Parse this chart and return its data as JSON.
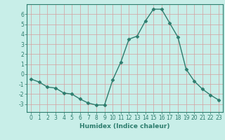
{
  "x": [
    0,
    1,
    2,
    3,
    4,
    5,
    6,
    7,
    8,
    9,
    10,
    11,
    12,
    13,
    14,
    15,
    16,
    17,
    18,
    19,
    20,
    21,
    22,
    23
  ],
  "y": [
    -0.5,
    -0.8,
    -1.3,
    -1.4,
    -1.9,
    -2.0,
    -2.5,
    -2.9,
    -3.1,
    -3.1,
    -0.6,
    1.2,
    3.5,
    3.8,
    5.3,
    6.5,
    6.5,
    5.1,
    3.7,
    0.5,
    -0.7,
    -1.5,
    -2.1,
    -2.6
  ],
  "line_color": "#2d7d6e",
  "marker": "D",
  "marker_size": 2.5,
  "xlabel": "Humidex (Indice chaleur)",
  "ylim": [
    -3.8,
    7.0
  ],
  "xlim": [
    -0.5,
    23.5
  ],
  "yticks": [
    -3,
    -2,
    -1,
    0,
    1,
    2,
    3,
    4,
    5,
    6
  ],
  "xticks": [
    0,
    1,
    2,
    3,
    4,
    5,
    6,
    7,
    8,
    9,
    10,
    11,
    12,
    13,
    14,
    15,
    16,
    17,
    18,
    19,
    20,
    21,
    22,
    23
  ],
  "bg_color": "#c8eee8",
  "grid_color": "#d4a0a0",
  "line_width": 1.0,
  "xlabel_fontsize": 6.5,
  "tick_fontsize": 5.5
}
